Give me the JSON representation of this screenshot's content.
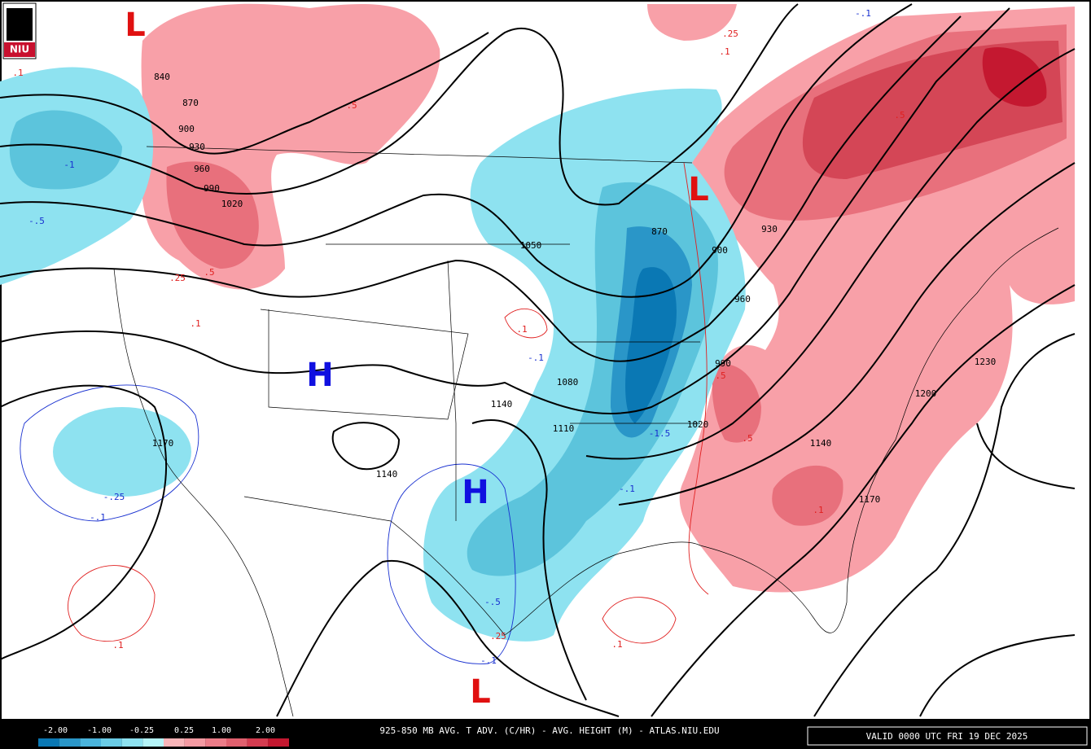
{
  "logo": {
    "text": "NIU"
  },
  "map": {
    "heights": [
      "840",
      "870",
      "900",
      "930",
      "960",
      "990",
      "1020",
      "1050",
      "870",
      "900",
      "930",
      "960",
      "990",
      "1080",
      "1110",
      "1140",
      "1140",
      "1020",
      "1140",
      "1170",
      "1200",
      "1230",
      "1170"
    ],
    "advection": [
      ".1",
      "-.1",
      ".25",
      ".1",
      ".5",
      ".5",
      "-1",
      "-.5",
      ".25",
      ".5",
      ".1",
      ".1",
      "-.1",
      "-1.5",
      "-.1",
      ".5",
      ".5",
      "-.25",
      "-.1",
      "-.5",
      ".25",
      "-.1",
      ".1",
      ".1",
      ".1"
    ],
    "centers": [
      "L",
      "L",
      "H",
      "H",
      "L"
    ]
  },
  "legend": {
    "ticks": [
      "-2.00",
      "-1.00",
      "-0.25",
      "0.25",
      "1.00",
      "2.00"
    ],
    "colors": [
      "#0a78b4",
      "#2a96c8",
      "#4ab4dc",
      "#6acce6",
      "#8ee2f0",
      "#b4f4f8",
      "#f8b4b8",
      "#f49aa2",
      "#ec7c88",
      "#e0606e",
      "#d43c50",
      "#c41830"
    ]
  },
  "footer": {
    "title": "925-850 MB AVG. T ADV. (C/HR) - AVG. HEIGHT (M) - ATLAS.NIU.EDU",
    "valid": "VALID 0000 UTC FRI 19 DEC 2025"
  }
}
